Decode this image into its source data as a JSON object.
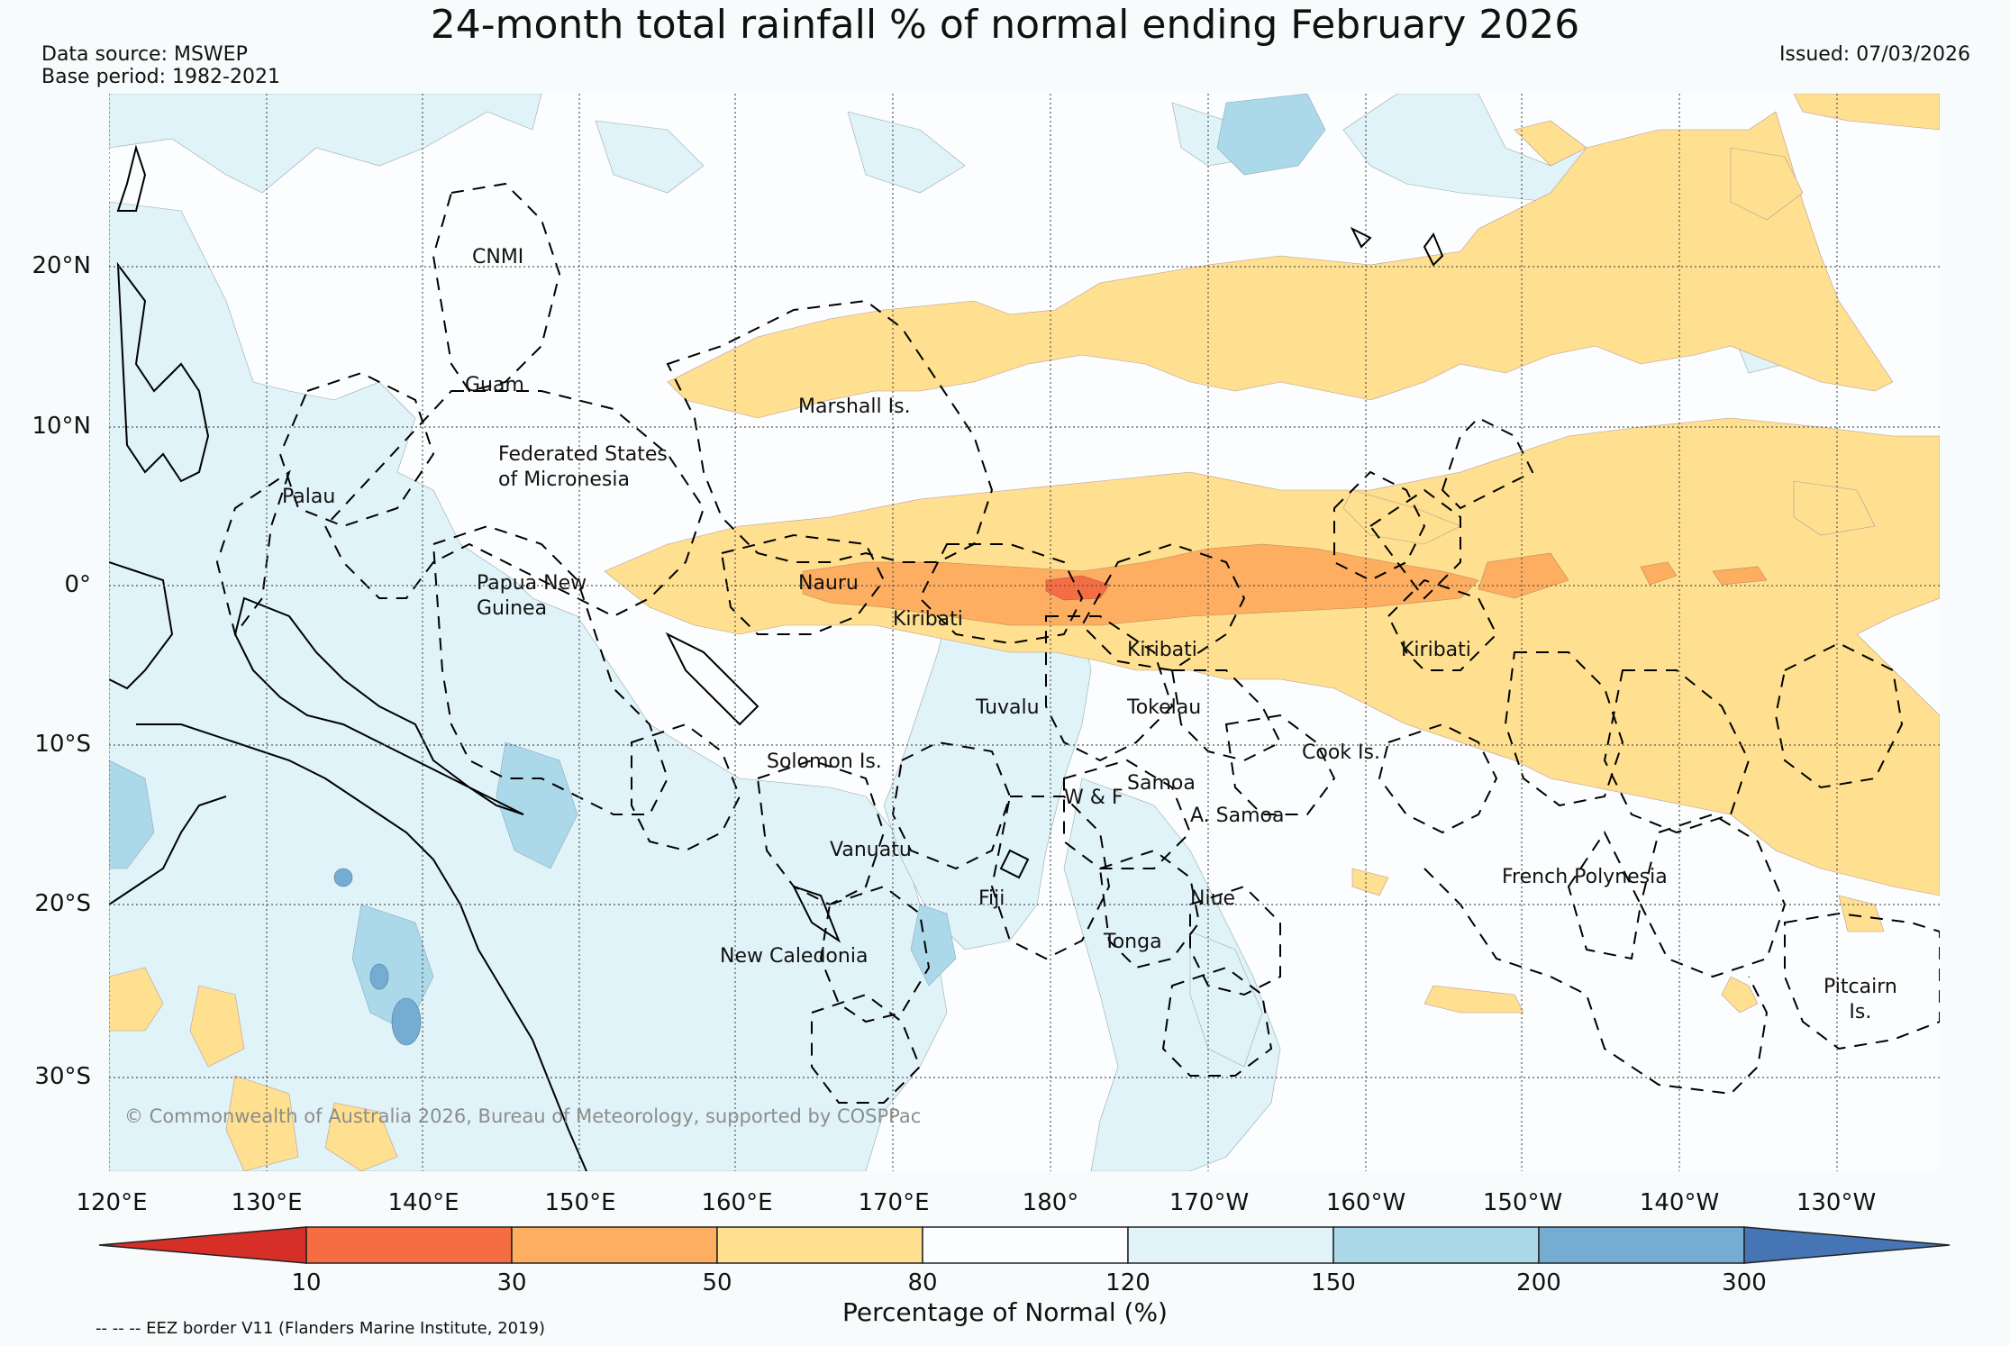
{
  "title": "24-month total rainfall % of normal ending February 2026",
  "data_source": "Data source: MSWEP",
  "base_period": "Base period: 1982-2021",
  "issued": "Issued: 07/03/2026",
  "copyright": "© Commonwealth of Australia 2026, Bureau of Meteorology, supported by COSPPac",
  "eez_note": "-- -- -- EEZ border V11 (Flanders Marine Institute, 2019)",
  "axes": {
    "lat_labels": [
      "20°N",
      "10°N",
      "0°",
      "10°S",
      "20°S",
      "30°S"
    ],
    "lon_labels": [
      "120°E",
      "130°E",
      "140°E",
      "150°E",
      "160°E",
      "170°E",
      "180°",
      "170°W",
      "160°W",
      "150°W",
      "140°W",
      "130°W"
    ]
  },
  "colorbar": {
    "title": "Percentage of Normal (%)",
    "ticks": [
      "10",
      "30",
      "50",
      "80",
      "120",
      "150",
      "200",
      "300"
    ],
    "colors": [
      "#d62f27",
      "#f46d43",
      "#fdae61",
      "#fee090",
      "#fbfdfe",
      "#e0f3f8",
      "#abd9e9",
      "#74add1",
      "#4575b4"
    ]
  },
  "regions": {
    "cnmi": "CNMI",
    "guam": "Guam",
    "marshall": "Marshall Is.",
    "fsm": "Federated States\nof Micronesia",
    "palau": "Palau",
    "png": "Papua New\nGuinea",
    "nauru": "Nauru",
    "kiribati_w": "Kiribati",
    "kiribati_c": "Kiribati",
    "kiribati_e": "Kiribati",
    "tuvalu": "Tuvalu",
    "tokelau": "Tokelau",
    "cook": "Cook Is.",
    "solomon": "Solomon Is.",
    "samoa": "Samoa",
    "wf": "W & F",
    "asamoa": "A. Samoa",
    "vanuatu": "Vanuatu",
    "fiji": "Fiji",
    "niue": "Niue",
    "fp": "French Polynesia",
    "tonga": "Tonga",
    "newcal": "New Caledonia",
    "pitcairn": "Pitcairn\nIs."
  }
}
